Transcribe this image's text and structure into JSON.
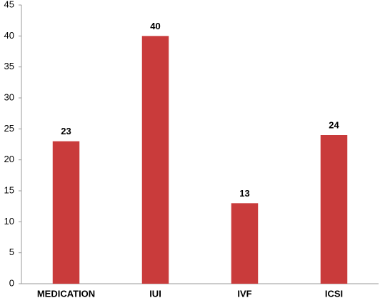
{
  "chart_data": {
    "type": "bar",
    "categories": [
      "MEDICATION",
      "IUI",
      "IVF",
      "ICSI"
    ],
    "values": [
      23,
      40,
      13,
      24
    ],
    "color": "#c93b3b",
    "ylim": [
      0,
      45
    ],
    "yticks": [
      0,
      5,
      10,
      15,
      20,
      25,
      30,
      35,
      40,
      45
    ],
    "grid": false
  }
}
